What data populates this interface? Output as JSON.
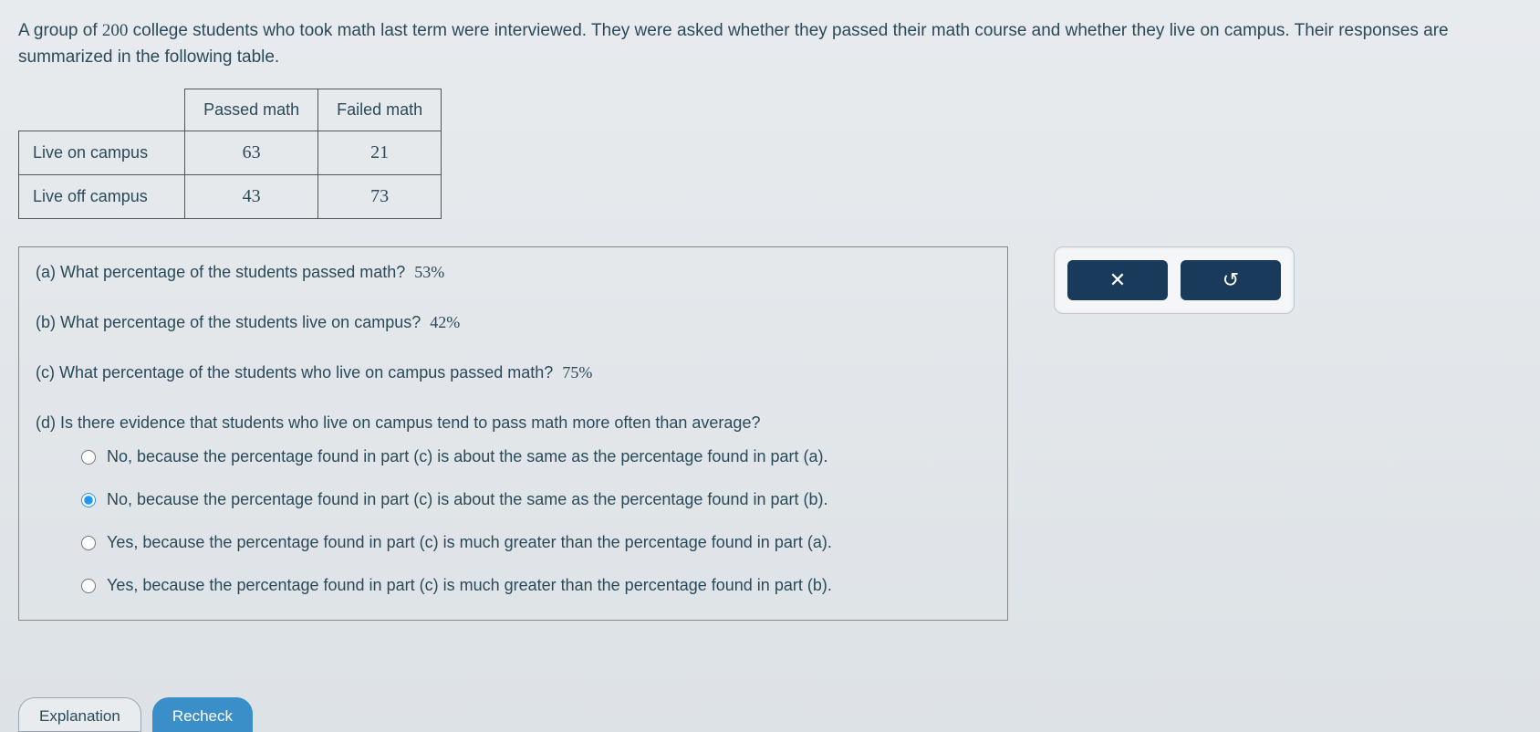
{
  "problem": {
    "text_part1": "A group of ",
    "sample_size": "200",
    "text_part2": " college students who took math last term were interviewed. They were asked whether they passed their math course and whether they live on campus. Their responses are summarized in the following table."
  },
  "table": {
    "col_headers": [
      "Passed math",
      "Failed math"
    ],
    "row_headers": [
      "Live on campus",
      "Live off campus"
    ],
    "rows": [
      [
        "63",
        "21"
      ],
      [
        "43",
        "73"
      ]
    ],
    "border_color": "#555555",
    "cell_padding": 12
  },
  "questions": {
    "a": {
      "label": "(a) What percentage of the students passed math?",
      "answer": "53%"
    },
    "b": {
      "label": "(b) What percentage of the students live on campus?",
      "answer": "42%"
    },
    "c": {
      "label": "(c) What percentage of the students who live on campus passed math?",
      "answer": "75%"
    },
    "d": {
      "label": "(d) Is there evidence that students who live on campus tend to pass math more often than average?",
      "options": [
        "No, because the percentage found in part (c) is about the same as the percentage found in part (a).",
        "No, because the percentage found in part (c) is about the same as the percentage found in part (b).",
        "Yes, because the percentage found in part (c) is much greater than the percentage found in part (a).",
        "Yes, because the percentage found in part (c) is much greater than the percentage found in part (b)."
      ],
      "selected_index": 1
    }
  },
  "side_buttons": {
    "close_label": "✕",
    "reset_label": "↺"
  },
  "bottom_buttons": {
    "explanation": "Explanation",
    "recheck": "Recheck"
  },
  "colors": {
    "background_top": "#e8ebee",
    "background_bottom": "#dde2e6",
    "text": "#2a4a5a",
    "button_dark": "#1a3a5c",
    "button_blue": "#3a8fc8",
    "panel_bg": "#f5f6f7",
    "panel_border": "#c0c8d0"
  }
}
